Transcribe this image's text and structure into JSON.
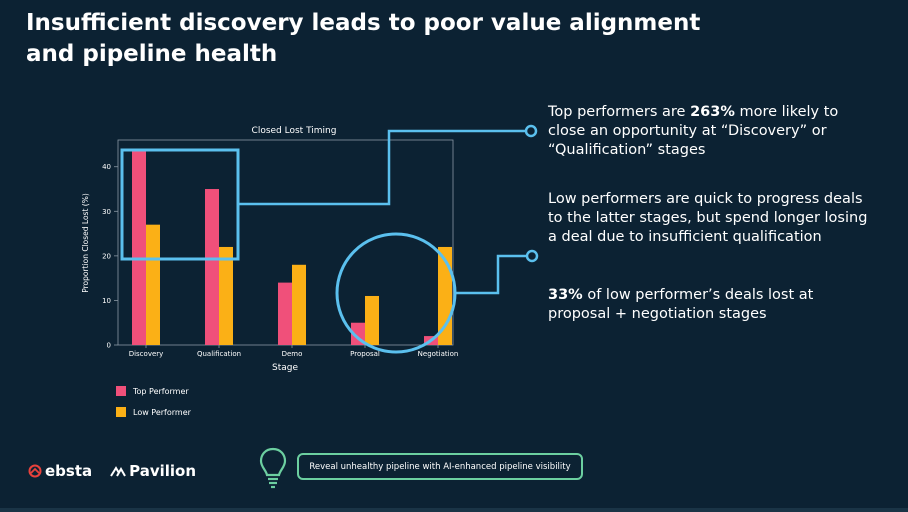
{
  "slide": {
    "title": "Insufficient discovery leads to poor value alignment and pipeline health"
  },
  "chart_data": {
    "type": "bar",
    "title": "Closed Lost Timing",
    "xlabel": "Stage",
    "ylabel": "Proportion Closed Lost (%)",
    "categories": [
      "Discovery",
      "Qualification",
      "Demo",
      "Proposal",
      "Negotiation"
    ],
    "series": [
      {
        "name": "Top Performer",
        "values": [
          44,
          35,
          14,
          5,
          2
        ],
        "color": "#f0507a"
      },
      {
        "name": "Low Performer",
        "values": [
          27,
          22,
          18,
          11,
          22
        ],
        "color": "#fbb016"
      }
    ],
    "yticks": [
      0,
      10,
      20,
      30,
      40
    ],
    "ylim": [
      0,
      46
    ],
    "legend": "bottom-left",
    "grid": false
  },
  "callouts": {
    "c1": {
      "pre": "Top performers are ",
      "bold": "263%",
      "post": " more likely to close an opportunity at “Discovery” or “Qualification” stages"
    },
    "c2": {
      "text": "Low performers are quick to progress deals to the latter stages, but spend longer losing a deal due to insufficient qualification"
    },
    "c3": {
      "bold": "33%",
      "post": " of low performer’s deals lost at proposal + negotiation stages"
    }
  },
  "footer": {
    "logo1": "ebsta",
    "logo2": "Pavilion",
    "tip": "Reveal unhealthy pipeline with AI-enhanced pipeline visibility"
  },
  "colors": {
    "background": "#0c2233",
    "highlight": "#5bc0ee",
    "tip_border": "#6ccfa0"
  }
}
